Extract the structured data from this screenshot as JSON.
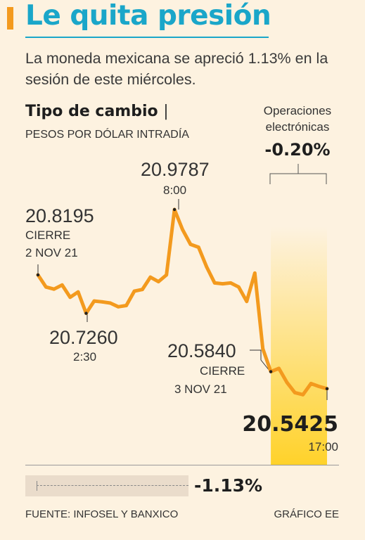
{
  "header": {
    "title": "Le quita presión",
    "subtitle": "La moneda mexicana se apreció 1.13% en la sesión de este miércoles."
  },
  "chart_header": {
    "title": "Tipo de cambio",
    "separator": "|",
    "subtitle": "PESOS POR DÓLAR INTRADÍA"
  },
  "electronic": {
    "label": "Operaciones electrónicas",
    "change": "-0.20%"
  },
  "annotations": {
    "open_value": "20.8195",
    "open_label": "CIERRE",
    "open_date": "2 NOV 21",
    "high_value": "20.9787",
    "high_time": "8:00",
    "low_value": "20.7260",
    "low_time": "2:30",
    "close_value": "20.5840",
    "close_label": "CIERRE",
    "close_date": "3 NOV 21",
    "last_value": "20.5425",
    "last_time": "17:00"
  },
  "total_change": "-1.13%",
  "footer": {
    "source": "FUENTE: INFOSEL Y BANXICO",
    "credit": "GRÁFICO EE"
  },
  "colors": {
    "title": "#1aa6c9",
    "line": "#f39a1e",
    "highlight_top": "#fdf2e0",
    "highlight_bottom": "#ffd22a",
    "background": "#fdf2e0"
  },
  "chart_data": {
    "type": "line",
    "series": [
      {
        "values": [
          20.8195,
          20.79,
          20.785,
          20.795,
          20.765,
          20.778,
          20.726,
          20.756,
          20.754,
          20.751,
          20.742,
          20.745,
          20.78,
          20.784,
          20.814,
          20.803,
          20.8195,
          20.9787,
          20.93,
          20.894,
          20.887,
          20.839,
          20.8,
          20.798,
          20.8,
          20.79,
          20.755,
          20.824,
          20.64,
          20.584,
          20.592,
          20.558,
          20.533,
          20.528,
          20.555,
          20.548,
          20.5425
        ]
      }
    ],
    "ylim": [
      20.45,
      21.05
    ],
    "highlight_from_index": 29
  }
}
